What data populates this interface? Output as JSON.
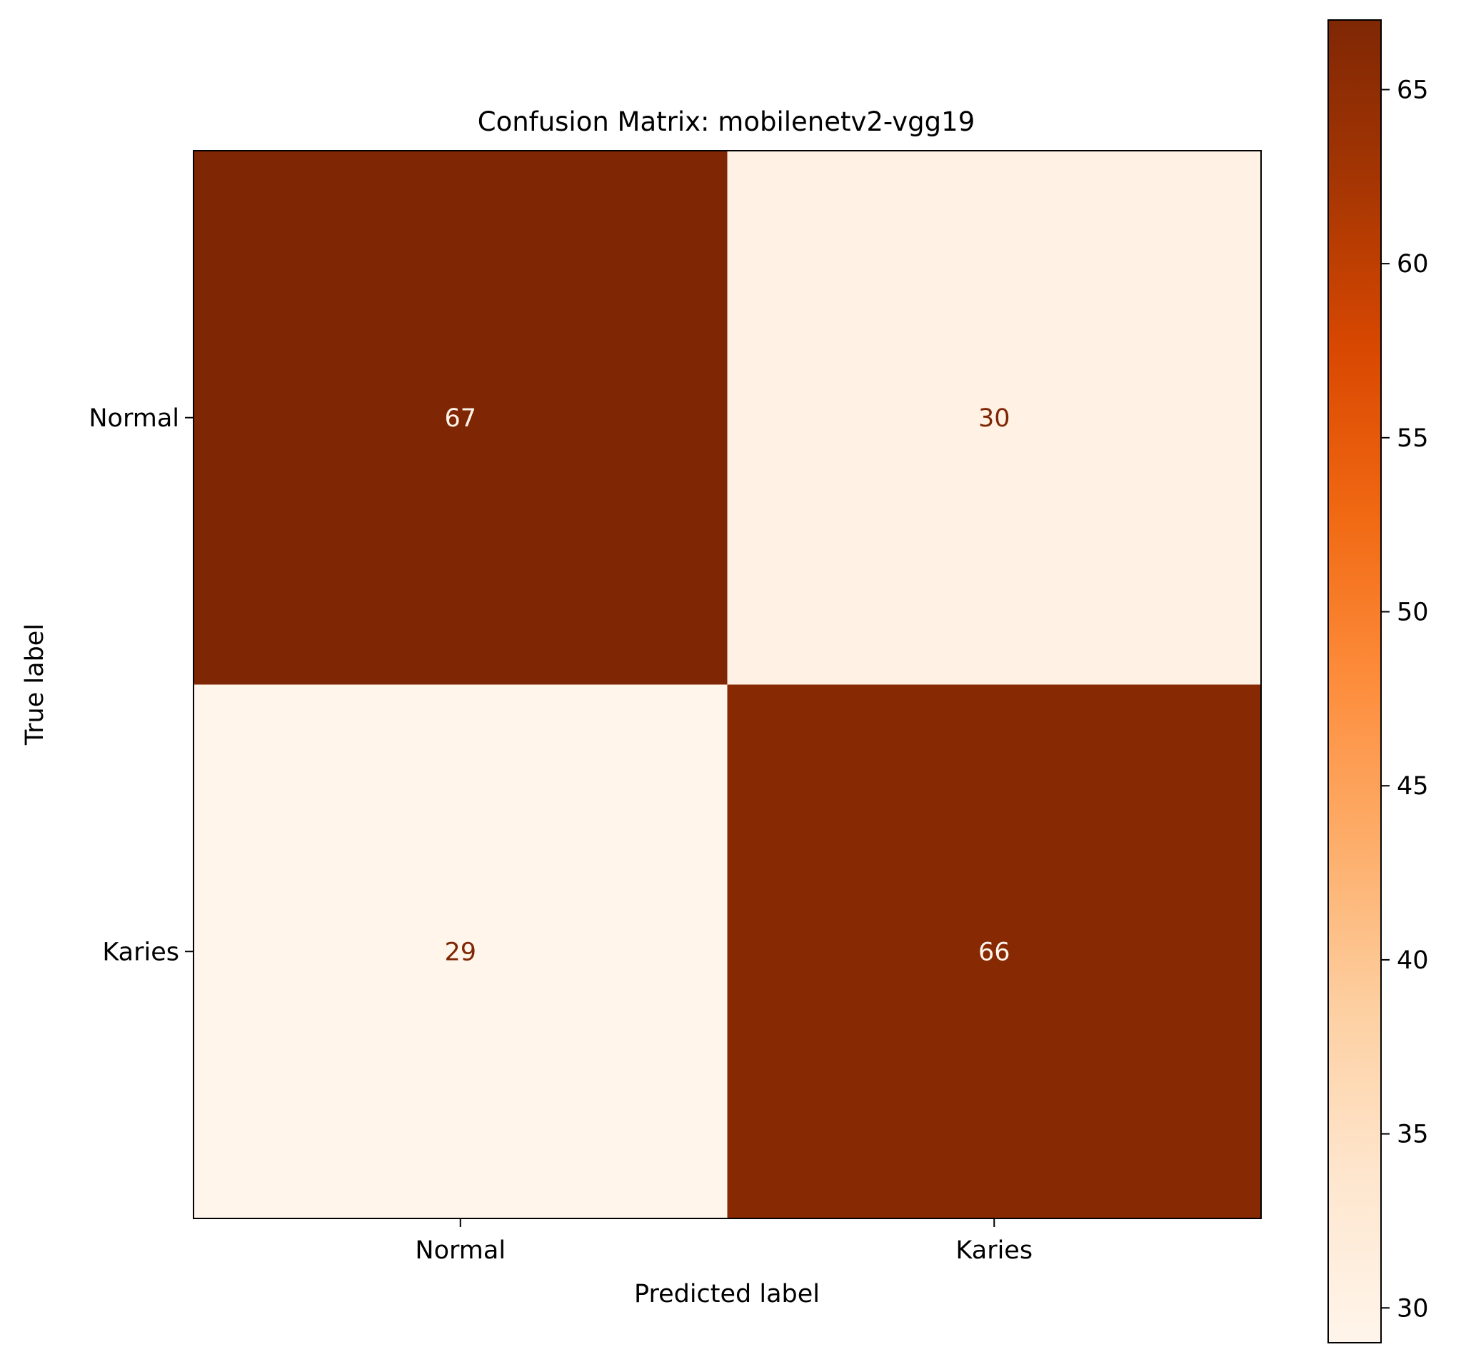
{
  "chart_data": {
    "type": "heatmap",
    "title": "Confusion Matrix: mobilenetv2-vgg19",
    "xlabel": "Predicted label",
    "ylabel": "True label",
    "x_categories": [
      "Normal",
      "Karies"
    ],
    "y_categories": [
      "Normal",
      "Karies"
    ],
    "matrix": [
      [
        67,
        30
      ],
      [
        29,
        66
      ]
    ],
    "colormap": "Oranges",
    "colors": {
      "low": "#fff5eb",
      "high": "#7f2704",
      "text_on_dark": "#fff5eb",
      "text_on_light": "#7f2704"
    },
    "colorbar": {
      "range": [
        29,
        67
      ],
      "ticks": [
        30,
        35,
        40,
        45,
        50,
        55,
        60,
        65
      ]
    }
  }
}
